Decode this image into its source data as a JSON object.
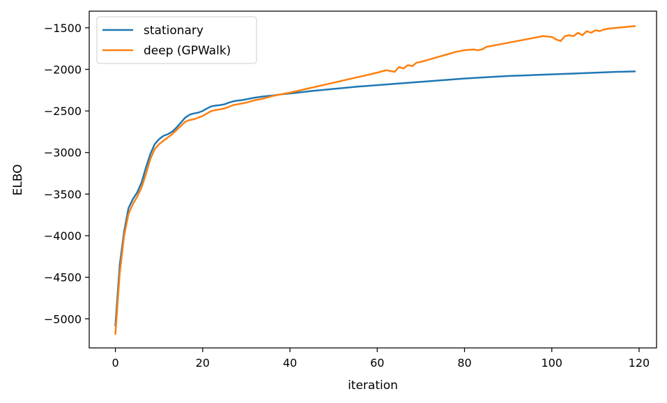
{
  "chart_data": {
    "type": "line",
    "xlabel": "iteration",
    "ylabel": "ELBO",
    "xlim": [
      -6,
      124
    ],
    "ylim": [
      -5350,
      -1300
    ],
    "xticks": [
      0,
      20,
      40,
      60,
      80,
      100,
      120
    ],
    "yticks": [
      -5000,
      -4500,
      -4000,
      -3500,
      -3000,
      -2500,
      -2000,
      -1500
    ],
    "grid": false,
    "legend_position": "top-left",
    "series": [
      {
        "name": "stationary",
        "color": "#1f77b4",
        "x": [
          0,
          1,
          2,
          3,
          4,
          5,
          6,
          7,
          8,
          9,
          10,
          11,
          12,
          13,
          14,
          15,
          16,
          17,
          18,
          19,
          20,
          21,
          22,
          23,
          24,
          25,
          26,
          27,
          28,
          29,
          30,
          32,
          34,
          36,
          38,
          40,
          45,
          50,
          55,
          60,
          65,
          70,
          75,
          80,
          85,
          90,
          95,
          100,
          105,
          110,
          115,
          119
        ],
        "y": [
          -5080,
          -4350,
          -3950,
          -3670,
          -3560,
          -3480,
          -3360,
          -3180,
          -3020,
          -2900,
          -2840,
          -2800,
          -2780,
          -2750,
          -2700,
          -2640,
          -2580,
          -2545,
          -2530,
          -2520,
          -2500,
          -2470,
          -2445,
          -2435,
          -2430,
          -2420,
          -2400,
          -2385,
          -2375,
          -2370,
          -2360,
          -2340,
          -2325,
          -2315,
          -2300,
          -2290,
          -2260,
          -2235,
          -2210,
          -2190,
          -2170,
          -2150,
          -2130,
          -2110,
          -2095,
          -2080,
          -2070,
          -2060,
          -2050,
          -2040,
          -2030,
          -2025
        ]
      },
      {
        "name": "deep (GPWalk)",
        "color": "#ff7f0e",
        "x": [
          0,
          1,
          2,
          3,
          4,
          5,
          6,
          7,
          8,
          9,
          10,
          11,
          12,
          13,
          14,
          15,
          16,
          17,
          18,
          19,
          20,
          21,
          22,
          23,
          24,
          25,
          26,
          27,
          28,
          29,
          30,
          32,
          34,
          36,
          38,
          40,
          45,
          50,
          55,
          60,
          62,
          63,
          64,
          65,
          66,
          67,
          68,
          69,
          70,
          72,
          74,
          76,
          78,
          80,
          82,
          83,
          84,
          85,
          86,
          88,
          90,
          92,
          94,
          96,
          98,
          100,
          101,
          102,
          103,
          104,
          105,
          106,
          107,
          108,
          109,
          110,
          111,
          112,
          113,
          115,
          117,
          119
        ],
        "y": [
          -5180,
          -4450,
          -4000,
          -3740,
          -3620,
          -3530,
          -3420,
          -3260,
          -3080,
          -2960,
          -2900,
          -2860,
          -2820,
          -2780,
          -2730,
          -2680,
          -2630,
          -2610,
          -2600,
          -2580,
          -2560,
          -2530,
          -2500,
          -2490,
          -2480,
          -2470,
          -2450,
          -2430,
          -2420,
          -2410,
          -2400,
          -2370,
          -2350,
          -2320,
          -2300,
          -2280,
          -2220,
          -2160,
          -2100,
          -2040,
          -2010,
          -2020,
          -2030,
          -1970,
          -1990,
          -1950,
          -1960,
          -1920,
          -1910,
          -1880,
          -1850,
          -1820,
          -1790,
          -1770,
          -1760,
          -1770,
          -1760,
          -1730,
          -1720,
          -1700,
          -1680,
          -1660,
          -1640,
          -1620,
          -1600,
          -1610,
          -1640,
          -1660,
          -1600,
          -1590,
          -1600,
          -1560,
          -1590,
          -1540,
          -1560,
          -1530,
          -1540,
          -1520,
          -1510,
          -1500,
          -1490,
          -1480
        ]
      }
    ]
  }
}
